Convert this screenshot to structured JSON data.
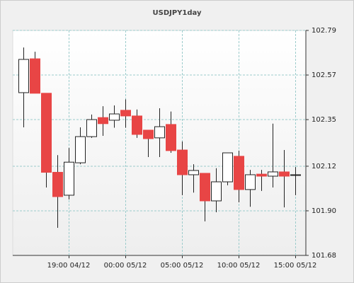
{
  "chart_data": {
    "type": "candlestick",
    "title": "USDJPY1day",
    "categories": [
      null,
      null,
      null,
      null,
      "19:00 04/12",
      null,
      null,
      null,
      null,
      "00:00 05/12",
      null,
      null,
      null,
      null,
      "05:00 05/12",
      null,
      null,
      null,
      null,
      "10:00 05/12",
      null,
      null,
      null,
      null,
      "15:00 05/12"
    ],
    "open": [
      102.483,
      102.65,
      102.48,
      102.09,
      101.977,
      102.137,
      102.266,
      102.36,
      102.347,
      102.396,
      102.368,
      102.298,
      102.26,
      102.326,
      102.2,
      102.078,
      102.085,
      101.949,
      102.043,
      102.169,
      102.005,
      102.081,
      102.071,
      102.092,
      102.078
    ],
    "high": [
      102.706,
      102.685,
      102.48,
      102.175,
      102.21,
      102.312,
      102.375,
      102.416,
      102.42,
      102.45,
      102.4,
      102.298,
      102.406,
      102.39,
      102.242,
      102.13,
      102.085,
      102.11,
      102.186,
      102.197,
      102.102,
      102.102,
      102.33,
      102.2,
      102.116
    ],
    "low": [
      102.312,
      102.48,
      102.015,
      101.816,
      101.956,
      102.13,
      102.26,
      102.27,
      102.31,
      102.31,
      102.26,
      102.165,
      102.165,
      102.186,
      101.977,
      101.99,
      101.848,
      101.893,
      102.026,
      101.942,
      101.92,
      101.998,
      102.015,
      101.917,
      101.977
    ],
    "close": [
      102.647,
      102.48,
      102.09,
      101.97,
      102.14,
      102.266,
      102.35,
      102.33,
      102.378,
      102.368,
      102.277,
      102.256,
      102.315,
      102.197,
      102.078,
      102.099,
      101.949,
      102.043,
      102.186,
      102.005,
      102.078,
      102.071,
      102.092,
      102.071,
      102.078
    ],
    "up_color": "#ffffff",
    "down_color": "#e84545",
    "ylim": [
      101.68,
      102.79
    ],
    "yticks": [
      {
        "value": 101.68,
        "label": "101.68"
      },
      {
        "value": 101.9,
        "label": "101.90"
      },
      102.12,
      102.35,
      102.57,
      102.79
    ],
    "grid": true
  }
}
